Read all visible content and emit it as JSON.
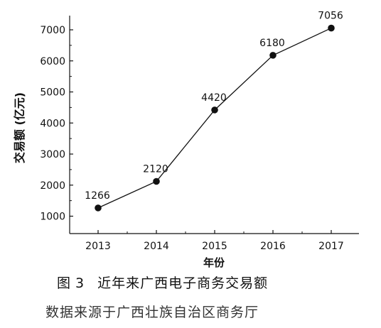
{
  "figure": {
    "label": "图",
    "number": "3",
    "title": "近年来广西电子商务交易额",
    "source": "数据来源于广西壮族自治区商务厅"
  },
  "chart_data": {
    "type": "line",
    "title": "",
    "xlabel": "年份",
    "ylabel": "交易额 (亿元)",
    "categories": [
      "2013",
      "2014",
      "2015",
      "2016",
      "2017"
    ],
    "values": [
      1266,
      2120,
      4420,
      6180,
      7056
    ],
    "data_labels": [
      "1266",
      "2120",
      "4420",
      "6180",
      "7056"
    ],
    "y_ticks": [
      1000,
      2000,
      3000,
      4000,
      5000,
      6000,
      7000
    ],
    "ylim": [
      600,
      7500
    ],
    "grid": false,
    "legend": "none",
    "line_color": "#111111",
    "marker_color": "#111111"
  }
}
